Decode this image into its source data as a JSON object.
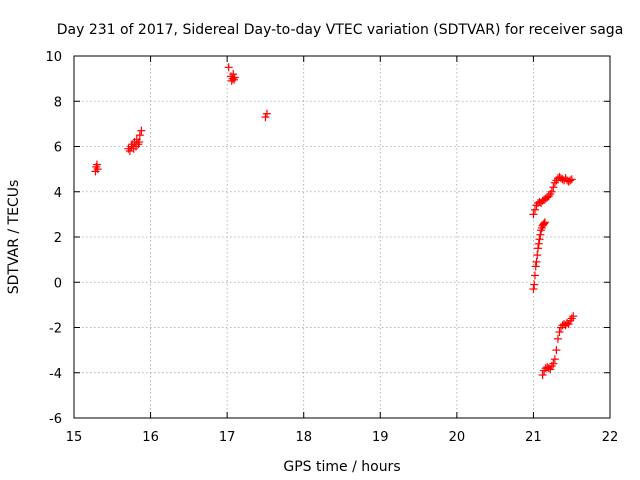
{
  "chart_data": {
    "type": "scatter",
    "title": "Day 231 of 2017, Sidereal Day-to-day VTEC variation (SDTVAR) for receiver saga",
    "xlabel": "GPS time / hours",
    "ylabel": "SDTVAR / TECUs",
    "xlim": [
      15,
      22
    ],
    "ylim": [
      -6,
      10
    ],
    "x_ticks": [
      15,
      16,
      17,
      18,
      19,
      20,
      21,
      22
    ],
    "x_tick_labels": [
      "15",
      "16",
      "17",
      "18",
      "19",
      "20",
      "21",
      "22"
    ],
    "y_ticks": [
      -6,
      -4,
      -2,
      0,
      2,
      4,
      6,
      8,
      10
    ],
    "y_tick_labels": [
      "-6",
      "-4",
      "-2",
      "0",
      "2",
      "4",
      "6",
      "8",
      "10"
    ],
    "grid": true,
    "marker": "plus",
    "marker_color": "#ff0000",
    "series": [
      {
        "name": "sdtvar",
        "x": [
          15.28,
          15.29,
          15.3,
          15.31,
          15.71,
          15.73,
          15.75,
          15.76,
          15.78,
          15.79,
          15.81,
          15.82,
          15.84,
          15.85,
          15.86,
          15.88,
          17.02,
          17.05,
          17.06,
          17.07,
          17.08,
          17.09,
          17.1,
          17.5,
          17.52,
          21.0,
          21.01,
          21.02,
          21.03,
          21.04,
          21.05,
          21.06,
          21.07,
          21.08,
          21.09,
          21.1,
          21.11,
          21.12,
          21.13,
          21.14,
          21.15,
          21.0,
          21.02,
          21.04,
          21.06,
          21.08,
          21.1,
          21.12,
          21.14,
          21.16,
          21.18,
          21.2,
          21.22,
          21.24,
          21.26,
          21.28,
          21.3,
          21.32,
          21.34,
          21.36,
          21.38,
          21.4,
          21.42,
          21.44,
          21.46,
          21.48,
          21.5,
          21.12,
          21.14,
          21.16,
          21.18,
          21.2,
          21.22,
          21.24,
          21.26,
          21.28,
          21.3,
          21.32,
          21.34,
          21.36,
          21.38,
          21.4,
          21.42,
          21.44,
          21.46,
          21.48,
          21.5,
          21.52
        ],
        "y": [
          4.9,
          5.1,
          5.2,
          5.0,
          5.9,
          5.8,
          6.0,
          6.1,
          5.9,
          6.2,
          6.0,
          6.3,
          6.1,
          6.2,
          6.5,
          6.7,
          9.5,
          9.1,
          8.9,
          9.0,
          9.2,
          8.95,
          9.05,
          7.3,
          7.45,
          -0.3,
          -0.1,
          0.3,
          0.7,
          0.9,
          1.2,
          1.5,
          1.7,
          1.9,
          2.1,
          2.3,
          2.4,
          2.5,
          2.55,
          2.6,
          2.65,
          3.0,
          3.2,
          3.4,
          3.5,
          3.55,
          3.5,
          3.6,
          3.65,
          3.7,
          3.75,
          3.8,
          3.9,
          4.0,
          4.2,
          4.4,
          4.5,
          4.6,
          4.65,
          4.6,
          4.55,
          4.5,
          4.6,
          4.5,
          4.45,
          4.5,
          4.55,
          -4.1,
          -3.9,
          -3.8,
          -3.75,
          -3.8,
          -3.85,
          -3.7,
          -3.6,
          -3.4,
          -3.0,
          -2.5,
          -2.2,
          -2.0,
          -1.9,
          -1.85,
          -1.9,
          -1.8,
          -1.85,
          -1.7,
          -1.6,
          -1.5
        ]
      }
    ]
  }
}
